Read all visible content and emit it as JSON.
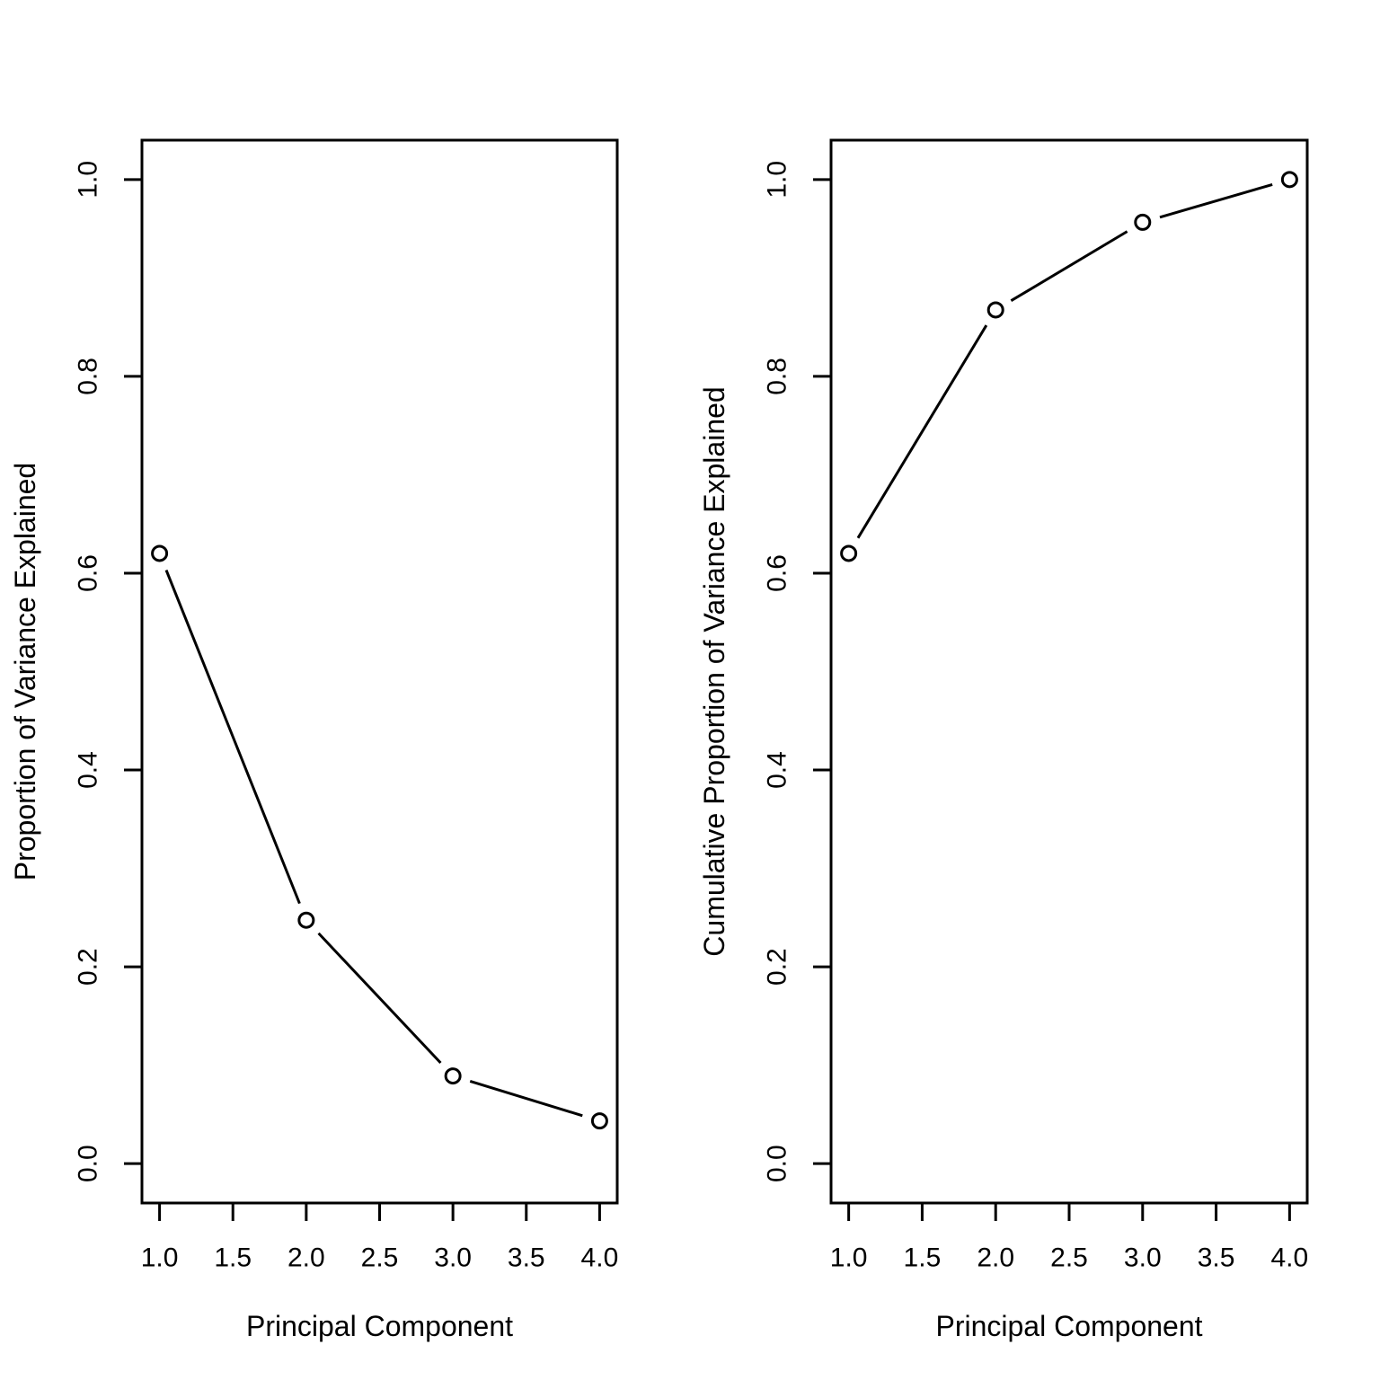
{
  "colors": {
    "background": "#ffffff",
    "axis": "#000000",
    "line": "#000000",
    "marker": "#000000"
  },
  "chart_data": [
    {
      "type": "line",
      "panel": "left",
      "title": "",
      "xlabel": "Principal Component",
      "ylabel": "Proportion of Variance Explained",
      "x": [
        1,
        2,
        3,
        4
      ],
      "y": [
        0.6201,
        0.2474,
        0.0891,
        0.0434
      ],
      "xticks": [
        1.0,
        1.5,
        2.0,
        2.5,
        3.0,
        3.5,
        4.0
      ],
      "xtick_labels": [
        "1.0",
        "1.5",
        "2.0",
        "2.5",
        "3.0",
        "3.5",
        "4.0"
      ],
      "yticks": [
        0.0,
        0.2,
        0.4,
        0.6,
        0.8,
        1.0
      ],
      "ytick_labels": [
        "0.0",
        "0.2",
        "0.4",
        "0.6",
        "0.8",
        "1.0"
      ],
      "xlim": [
        0.88,
        4.12
      ],
      "ylim": [
        -0.04,
        1.04
      ],
      "grid": false,
      "legend": "none",
      "marker": "open-circle",
      "line_style": "solid-with-gaps-at-points"
    },
    {
      "type": "line",
      "panel": "right",
      "title": "",
      "xlabel": "Principal Component",
      "ylabel": "Cumulative Proportion of Variance Explained",
      "x": [
        1,
        2,
        3,
        4
      ],
      "y": [
        0.6201,
        0.8675,
        0.9566,
        1.0
      ],
      "xticks": [
        1.0,
        1.5,
        2.0,
        2.5,
        3.0,
        3.5,
        4.0
      ],
      "xtick_labels": [
        "1.0",
        "1.5",
        "2.0",
        "2.5",
        "3.0",
        "3.5",
        "4.0"
      ],
      "yticks": [
        0.0,
        0.2,
        0.4,
        0.6,
        0.8,
        1.0
      ],
      "ytick_labels": [
        "0.0",
        "0.2",
        "0.4",
        "0.6",
        "0.8",
        "1.0"
      ],
      "xlim": [
        0.88,
        4.12
      ],
      "ylim": [
        -0.04,
        1.04
      ],
      "grid": false,
      "legend": "none",
      "marker": "open-circle",
      "line_style": "solid-with-gaps-at-points"
    }
  ]
}
